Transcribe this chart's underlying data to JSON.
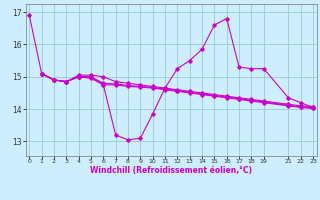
{
  "background_color": "#cceeff",
  "line_color": "#cc00cc",
  "grid_color": "#99cccc",
  "xlim": [
    -0.3,
    23.3
  ],
  "ylim": [
    12.55,
    17.25
  ],
  "yticks": [
    13,
    14,
    15,
    16,
    17
  ],
  "xticks": [
    0,
    1,
    2,
    3,
    4,
    5,
    6,
    7,
    8,
    9,
    10,
    11,
    12,
    13,
    14,
    15,
    16,
    17,
    18,
    19,
    21,
    22,
    23
  ],
  "xlabel": "Windchill (Refroidissement éolien,°C)",
  "lines": [
    {
      "x": [
        0,
        1,
        2,
        3,
        4,
        5,
        6,
        7,
        8,
        9,
        10,
        11,
        12,
        13,
        14,
        15,
        16,
        17,
        18,
        19,
        21,
        22,
        23
      ],
      "y": [
        16.9,
        15.1,
        14.9,
        14.85,
        15.0,
        14.95,
        14.75,
        13.2,
        13.05,
        13.1,
        13.85,
        14.65,
        15.25,
        15.5,
        15.85,
        16.6,
        16.8,
        15.3,
        15.25,
        15.25,
        14.35,
        14.2,
        14.05
      ]
    },
    {
      "x": [
        1,
        2,
        3,
        4,
        5,
        6,
        7,
        8,
        9,
        10,
        11,
        12,
        13,
        14,
        15,
        16,
        17,
        18,
        19,
        21,
        22,
        23
      ],
      "y": [
        15.1,
        14.9,
        14.85,
        15.05,
        15.05,
        15.0,
        14.85,
        14.8,
        14.75,
        14.7,
        14.65,
        14.6,
        14.55,
        14.5,
        14.45,
        14.4,
        14.35,
        14.3,
        14.25,
        14.15,
        14.1,
        14.08
      ]
    },
    {
      "x": [
        1,
        2,
        3,
        4,
        5,
        6,
        7,
        8,
        9,
        10,
        11,
        12,
        13,
        14,
        15,
        16,
        17,
        18,
        19,
        21,
        22,
        23
      ],
      "y": [
        15.1,
        14.9,
        14.85,
        15.0,
        15.0,
        14.8,
        14.78,
        14.73,
        14.7,
        14.67,
        14.62,
        14.57,
        14.52,
        14.47,
        14.42,
        14.37,
        14.32,
        14.27,
        14.22,
        14.12,
        14.07,
        14.04
      ]
    },
    {
      "x": [
        1,
        2,
        3,
        4,
        5,
        6,
        7,
        8,
        9,
        10,
        11,
        12,
        13,
        14,
        15,
        16,
        17,
        18,
        19,
        21,
        22,
        23
      ],
      "y": [
        15.1,
        14.9,
        14.85,
        15.0,
        15.0,
        14.75,
        14.75,
        14.7,
        14.68,
        14.65,
        14.6,
        14.55,
        14.5,
        14.45,
        14.4,
        14.35,
        14.3,
        14.25,
        14.2,
        14.1,
        14.05,
        14.02
      ]
    }
  ]
}
